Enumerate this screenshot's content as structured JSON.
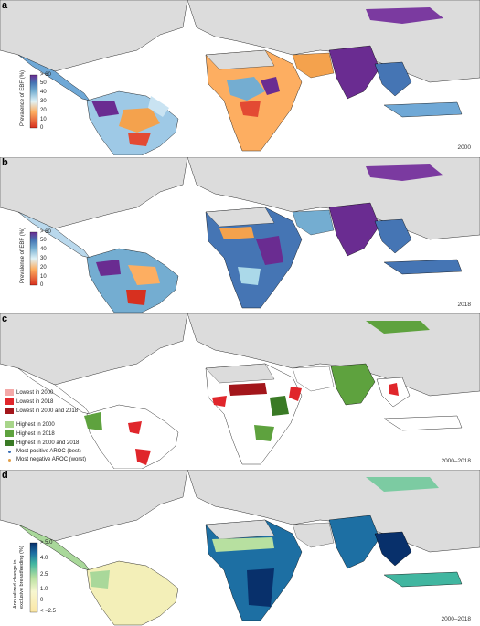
{
  "panels": [
    {
      "letter": "a",
      "year": "2000",
      "colorbar_title": "Prevalence of EBF (%)",
      "ticks": [
        "> 60",
        "50",
        "40",
        "30",
        "20",
        "10",
        "0"
      ]
    },
    {
      "letter": "b",
      "year": "2018",
      "colorbar_title": "Prevalence of EBF (%)",
      "ticks": [
        "> 60",
        "50",
        "40",
        "30",
        "20",
        "10",
        "0"
      ]
    },
    {
      "letter": "c",
      "year": "2000–2018",
      "legend": [
        {
          "label": "Lowest in 2000",
          "color": "#f4a9a8"
        },
        {
          "label": "Lowest in 2018",
          "color": "#e0262b"
        },
        {
          "label": "Lowest in 2000 and 2018",
          "color": "#a3161b"
        },
        {
          "label": "Highest in 2000",
          "color": "#a8d58a"
        },
        {
          "label": "Highest in 2018",
          "color": "#5ea23e"
        },
        {
          "label": "Highest in 2000 and 2018",
          "color": "#3a7a25"
        },
        {
          "label": "Most positive AROC (best)",
          "color": "#3b6fb6",
          "dot": true
        },
        {
          "label": "Most negative AROC (worst)",
          "color": "#e3a04a",
          "dot": true
        }
      ]
    },
    {
      "letter": "d",
      "year": "2000–2018",
      "colorbar_title": "Annualized change in exclusive breastfeeding (%)",
      "ticks": [
        "> 5.0",
        "4.0",
        "2.5",
        "1.0",
        "0",
        "< −2.5"
      ]
    }
  ],
  "colors": {
    "land": "#dcdcdc",
    "border": "#000000",
    "ebf_low": "#d7301f",
    "ebf_mid": "#c9dff0",
    "ebf_high": "#6a2c91",
    "aroc_low": "#fbe6a3",
    "aroc_high": "#08306b"
  }
}
